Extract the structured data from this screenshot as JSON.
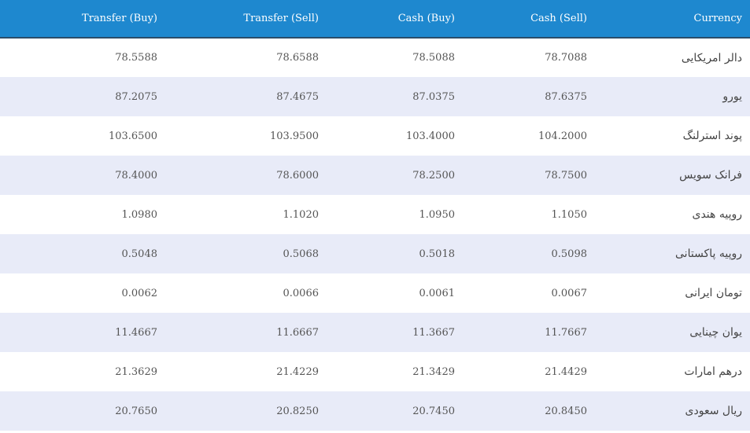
{
  "table": {
    "headers": {
      "transfer_buy": "Transfer (Buy)",
      "transfer_sell": "Transfer (Sell)",
      "cash_buy": "Cash (Buy)",
      "cash_sell": "Cash (Sell)",
      "currency": "Currency"
    },
    "rows": [
      {
        "transfer_buy": "78.5588",
        "transfer_sell": "78.6588",
        "cash_buy": "78.5088",
        "cash_sell": "78.7088",
        "currency": "دالر امریکایی"
      },
      {
        "transfer_buy": "87.2075",
        "transfer_sell": "87.4675",
        "cash_buy": "87.0375",
        "cash_sell": "87.6375",
        "currency": "یورو"
      },
      {
        "transfer_buy": "103.6500",
        "transfer_sell": "103.9500",
        "cash_buy": "103.4000",
        "cash_sell": "104.2000",
        "currency": "پوند استرلنگ"
      },
      {
        "transfer_buy": "78.4000",
        "transfer_sell": "78.6000",
        "cash_buy": "78.2500",
        "cash_sell": "78.7500",
        "currency": "فرانک سویس"
      },
      {
        "transfer_buy": "1.0980",
        "transfer_sell": "1.1020",
        "cash_buy": "1.0950",
        "cash_sell": "1.1050",
        "currency": "روپیه هندی"
      },
      {
        "transfer_buy": "0.5048",
        "transfer_sell": "0.5068",
        "cash_buy": "0.5018",
        "cash_sell": "0.5098",
        "currency": "روپیه پاکستانی"
      },
      {
        "transfer_buy": "0.0062",
        "transfer_sell": "0.0066",
        "cash_buy": "0.0061",
        "cash_sell": "0.0067",
        "currency": "تومان ایرانی"
      },
      {
        "transfer_buy": "11.4667",
        "transfer_sell": "11.6667",
        "cash_buy": "11.3667",
        "cash_sell": "11.7667",
        "currency": "یوان چینایی"
      },
      {
        "transfer_buy": "21.3629",
        "transfer_sell": "21.4229",
        "cash_buy": "21.3429",
        "cash_sell": "21.4429",
        "currency": "درهم امارات"
      },
      {
        "transfer_buy": "20.7650",
        "transfer_sell": "20.8250",
        "cash_buy": "20.7450",
        "cash_sell": "20.8450",
        "currency": "ریال سعودی"
      }
    ]
  }
}
